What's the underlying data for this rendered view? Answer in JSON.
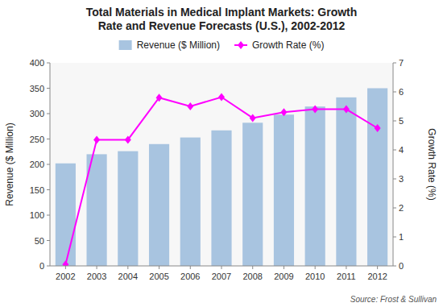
{
  "chart_data": {
    "type": "bar",
    "title": "Total Materials in Medical Implant Markets: Growth\nRate and Revenue Forecasts (U.S.), 2002-2012",
    "categories": [
      "2002",
      "2003",
      "2004",
      "2005",
      "2006",
      "2007",
      "2008",
      "2009",
      "2010",
      "2011",
      "2012"
    ],
    "series": [
      {
        "name": "Revenue ($ Million)",
        "type": "bar",
        "color": "#a8c4e0",
        "values": [
          202,
          220,
          226,
          240,
          253,
          267,
          282,
          298,
          314,
          332,
          350
        ]
      },
      {
        "name": "Growth Rate (%)",
        "type": "line",
        "axis": "y2",
        "color": "#ff00ff",
        "marker": "diamond",
        "values": [
          0.05,
          4.35,
          4.35,
          5.8,
          5.5,
          5.82,
          5.1,
          5.3,
          5.4,
          5.4,
          4.75
        ]
      }
    ],
    "ylabel": "Revenue ($ Million)",
    "y2label": "Growth Rate (%)",
    "ylim": [
      0,
      400
    ],
    "yticks": [
      0,
      50,
      100,
      150,
      200,
      250,
      300,
      350,
      400
    ],
    "y2lim": [
      0,
      7
    ],
    "y2ticks": [
      0,
      1,
      2,
      3,
      4,
      5,
      6,
      7
    ],
    "grid": false,
    "legend": "top",
    "annotation": "Source: Frost & Sullivan"
  }
}
